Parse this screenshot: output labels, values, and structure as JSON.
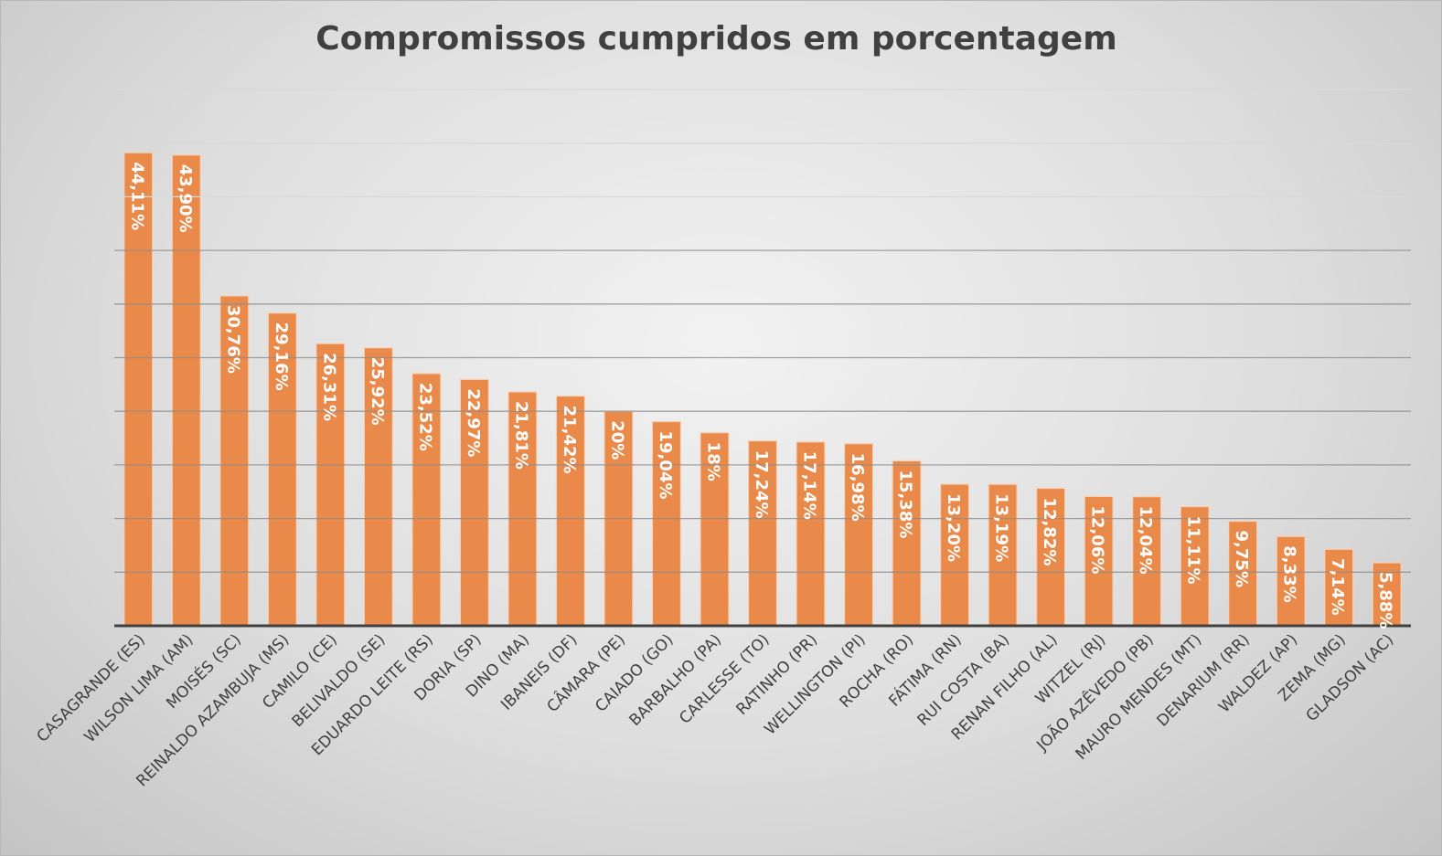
{
  "chart_data": {
    "type": "bar",
    "title": "Compromissos cumpridos em porcentagem",
    "xlabel": "",
    "ylabel": "",
    "ylim": [
      0,
      50
    ],
    "grid": true,
    "y_grid_step": 5,
    "bar_color": "#ea8a4a",
    "categories": [
      "CASAGRANDE (ES)",
      "WILSON LIMA (AM)",
      "MOISÉS (SC)",
      "REINALDO AZAMBUJA (MS)",
      "CAMILO (CE)",
      "BELIVALDO (SE)",
      "EDUARDO LEITE (RS)",
      "DORIA (SP)",
      "DINO (MA)",
      "IBANEIS (DF)",
      "CÂMARA (PE)",
      "CAIADO (GO)",
      "BARBALHO (PA)",
      "CARLESSE (TO)",
      "RATINHO (PR)",
      "WELLINGTON (PI)",
      "ROCHA (RO)",
      "FÁTIMA (RN)",
      "RUI COSTA (BA)",
      "RENAN FILHO (AL)",
      "WITZEL (RJ)",
      "JOÃO AZÊVEDO (PB)",
      "MAURO MENDES (MT)",
      "DENARIUM (RR)",
      "WALDEZ (AP)",
      "ZEMA (MG)",
      "GLADSON (AC)"
    ],
    "values": [
      44.11,
      43.9,
      30.76,
      29.16,
      26.31,
      25.92,
      23.52,
      22.97,
      21.81,
      21.42,
      20,
      19.04,
      18,
      17.24,
      17.14,
      16.98,
      15.38,
      13.2,
      13.19,
      12.82,
      12.06,
      12.04,
      11.11,
      9.75,
      8.33,
      7.14,
      5.88
    ],
    "data_labels": [
      "44,11%",
      "43,90%",
      "30,76%",
      "29,16%",
      "26,31%",
      "25,92%",
      "23,52%",
      "22,97%",
      "21,81%",
      "21,42%",
      "20%",
      "19,04%",
      "18%",
      "17,24%",
      "17,14%",
      "16,98%",
      "15,38%",
      "13,20%",
      "13,19%",
      "12,82%",
      "12,06%",
      "12,04%",
      "11,11%",
      "9,75%",
      "8,33%",
      "7,14%",
      "5,88%"
    ]
  }
}
